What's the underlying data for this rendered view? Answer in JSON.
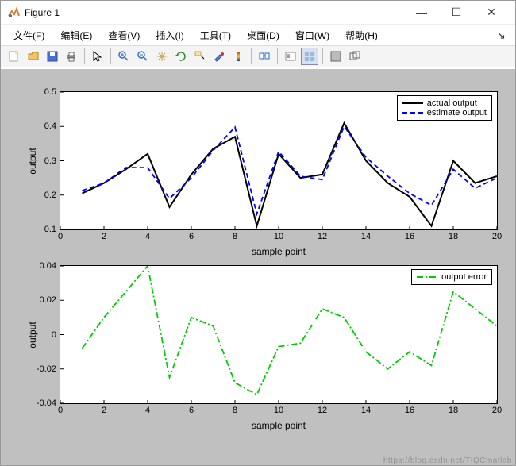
{
  "window": {
    "title": "Figure 1",
    "buttons": {
      "min": "—",
      "max": "☐",
      "close": "✕"
    }
  },
  "menu": {
    "items": [
      {
        "label": "文件",
        "key": "F"
      },
      {
        "label": "编辑",
        "key": "E"
      },
      {
        "label": "查看",
        "key": "V"
      },
      {
        "label": "插入",
        "key": "I"
      },
      {
        "label": "工具",
        "key": "T"
      },
      {
        "label": "桌面",
        "key": "D"
      },
      {
        "label": "窗口",
        "key": "W"
      },
      {
        "label": "帮助",
        "key": "H"
      }
    ],
    "hint": "↘"
  },
  "toolbar_icons": [
    "new-figure-icon",
    "open-icon",
    "save-icon",
    "print-icon",
    "sep",
    "pointer-icon",
    "sep",
    "zoom-in-icon",
    "zoom-out-icon",
    "pan-icon",
    "rotate-icon",
    "data-cursor-icon",
    "brush-icon",
    "colorbar-icon",
    "sep",
    "link-plot-icon",
    "sep",
    "insert-legend-icon",
    "sep",
    "layout-grid-icon",
    "layout-single-icon",
    "sep",
    "dock-icon",
    "undock-icon"
  ],
  "plot1": {
    "type": "line",
    "xlim": [
      0,
      20
    ],
    "ylim": [
      0.1,
      0.5
    ],
    "xticks": [
      0,
      2,
      4,
      6,
      8,
      10,
      12,
      14,
      16,
      18,
      20
    ],
    "yticks": [
      0.1,
      0.2,
      0.3,
      0.4,
      0.5
    ],
    "xlabel": "sample point",
    "ylabel": "output",
    "x": [
      1,
      2,
      3,
      4,
      5,
      6,
      7,
      8,
      9,
      10,
      11,
      12,
      13,
      14,
      15,
      16,
      17,
      18,
      19,
      20
    ],
    "actual": [
      0.205,
      0.235,
      0.275,
      0.32,
      0.165,
      0.26,
      0.335,
      0.37,
      0.11,
      0.32,
      0.25,
      0.26,
      0.41,
      0.3,
      0.235,
      0.195,
      0.11,
      0.3,
      0.235,
      0.255
    ],
    "estimate": [
      0.213,
      0.235,
      0.28,
      0.28,
      0.19,
      0.25,
      0.33,
      0.398,
      0.145,
      0.327,
      0.255,
      0.245,
      0.4,
      0.31,
      0.255,
      0.205,
      0.17,
      0.275,
      0.22,
      0.25
    ],
    "colors": {
      "actual": "#000000",
      "estimate": "#0000ff"
    },
    "line_width": {
      "actual": 2.0,
      "estimate": 1.8
    },
    "dash": {
      "actual": "none",
      "estimate": "6,4"
    },
    "legend": {
      "pos": "top-right",
      "items": [
        {
          "label": "actual output",
          "color": "#000000",
          "dash": "none"
        },
        {
          "label": "estimate output",
          "color": "#0000ff",
          "dash": "6,4"
        }
      ]
    },
    "background": "#ffffff",
    "axis_color": "#000000",
    "tick_fontsize": 11,
    "label_fontsize": 12
  },
  "plot2": {
    "type": "line",
    "xlim": [
      0,
      20
    ],
    "ylim": [
      -0.04,
      0.04
    ],
    "xticks": [
      0,
      2,
      4,
      6,
      8,
      10,
      12,
      14,
      16,
      18,
      20
    ],
    "yticks": [
      -0.04,
      -0.02,
      0,
      0.02,
      0.04
    ],
    "xlabel": "sample point",
    "ylabel": "output",
    "x": [
      1,
      2,
      3,
      4,
      5,
      6,
      7,
      8,
      9,
      10,
      11,
      12,
      13,
      14,
      15,
      16,
      17,
      18,
      19,
      20
    ],
    "error": [
      -0.008,
      0.01,
      0.025,
      0.04,
      -0.025,
      0.01,
      0.005,
      -0.028,
      -0.035,
      -0.007,
      -0.005,
      0.015,
      0.01,
      -0.01,
      -0.02,
      -0.01,
      -0.018,
      0.025,
      0.015,
      0.005
    ],
    "color": "#00cc00",
    "line_width": 1.8,
    "dash": "8,3,2,3",
    "legend": {
      "pos": "top-right",
      "items": [
        {
          "label": "output error",
          "color": "#00cc00",
          "dash": "8,3,2,3"
        }
      ]
    },
    "background": "#ffffff",
    "axis_color": "#000000",
    "tick_fontsize": 11,
    "label_fontsize": 12
  },
  "watermark": "https://blog.csdn.net/TIQCmatlab"
}
